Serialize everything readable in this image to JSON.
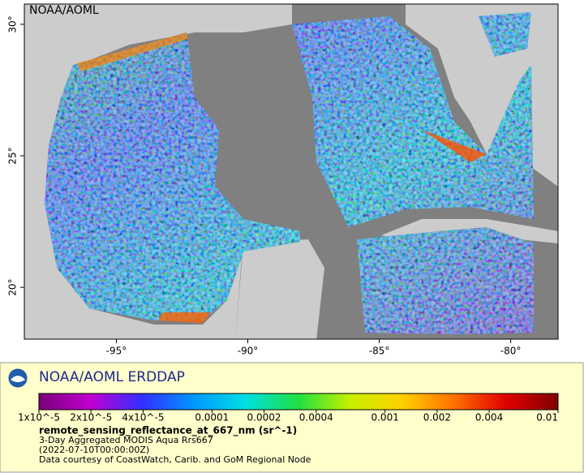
{
  "map": {
    "label": "NOAA/AOML",
    "xlim": [
      -98.5,
      -78.2
    ],
    "ylim": [
      18.03,
      30.77
    ],
    "xticks": [
      {
        "value": -95,
        "label": "-95°"
      },
      {
        "value": -90,
        "label": "-90°"
      },
      {
        "value": -85,
        "label": "-85°"
      },
      {
        "value": -80,
        "label": "-80°"
      }
    ],
    "yticks": [
      {
        "value": 30,
        "label": "30°"
      },
      {
        "value": 25,
        "label": "25°"
      },
      {
        "value": 20,
        "label": "20°"
      }
    ]
  },
  "legend": {
    "title": "NOAA/AOML ERDDAP",
    "colorbar": {
      "range": [
        1e-05,
        0.01
      ],
      "scale": "log",
      "colors": [
        "#7a0078",
        "#c000d0",
        "#3030ff",
        "#0098ff",
        "#00e0e0",
        "#20e040",
        "#c8f000",
        "#ffd000",
        "#ff7000",
        "#e00000",
        "#800000"
      ],
      "ticks": [
        {
          "value": 1e-05,
          "label": "1x10^-5"
        },
        {
          "value": 2e-05,
          "label": "2x10^-5"
        },
        {
          "value": 4e-05,
          "label": "4x10^-5"
        },
        0.0001,
        0.0002,
        0.0004,
        0.001,
        0.002,
        0.004,
        0.01
      ]
    },
    "variable": "remote_sensing_reflectance_at_667_nm (sr^-1)",
    "lines": [
      "3-Day Aggregated MODIS Aqua Rrs667",
      "(2022-07-10T00:00:00Z)",
      "Data courtesy of CoastWatch, Carib. and GoM Regional Node"
    ]
  }
}
